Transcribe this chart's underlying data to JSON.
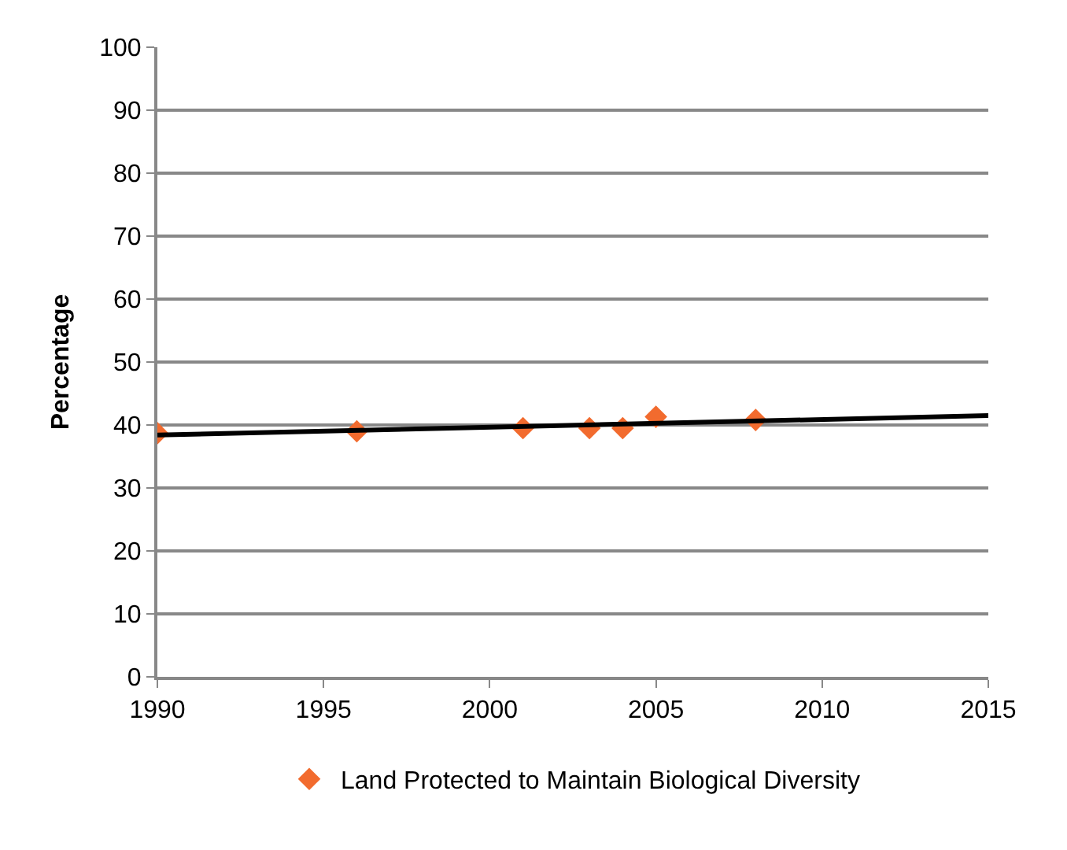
{
  "chart_data": {
    "type": "scatter",
    "ylabel": "Percentage",
    "xlim": [
      1990,
      2015
    ],
    "xticks": [
      1990,
      1995,
      2000,
      2005,
      2010,
      2015
    ],
    "ylim": [
      0,
      100
    ],
    "yticks": [
      0,
      10,
      20,
      30,
      40,
      50,
      60,
      70,
      80,
      90,
      100
    ],
    "grid": "y",
    "legend": "bottom",
    "series": [
      {
        "name": "Land Protected to Maintain Biological Diversity",
        "color": "#f26b2e",
        "marker": "diamond",
        "x": [
          1990,
          1996,
          2001,
          2003,
          2004,
          2005,
          2008
        ],
        "values": [
          38.7,
          39.0,
          39.5,
          39.5,
          39.5,
          41.3,
          40.8
        ]
      },
      {
        "type": "line",
        "marker": "none",
        "color": "#000000",
        "x": [
          1990,
          2015
        ],
        "values": [
          38.4,
          41.5
        ]
      }
    ]
  }
}
